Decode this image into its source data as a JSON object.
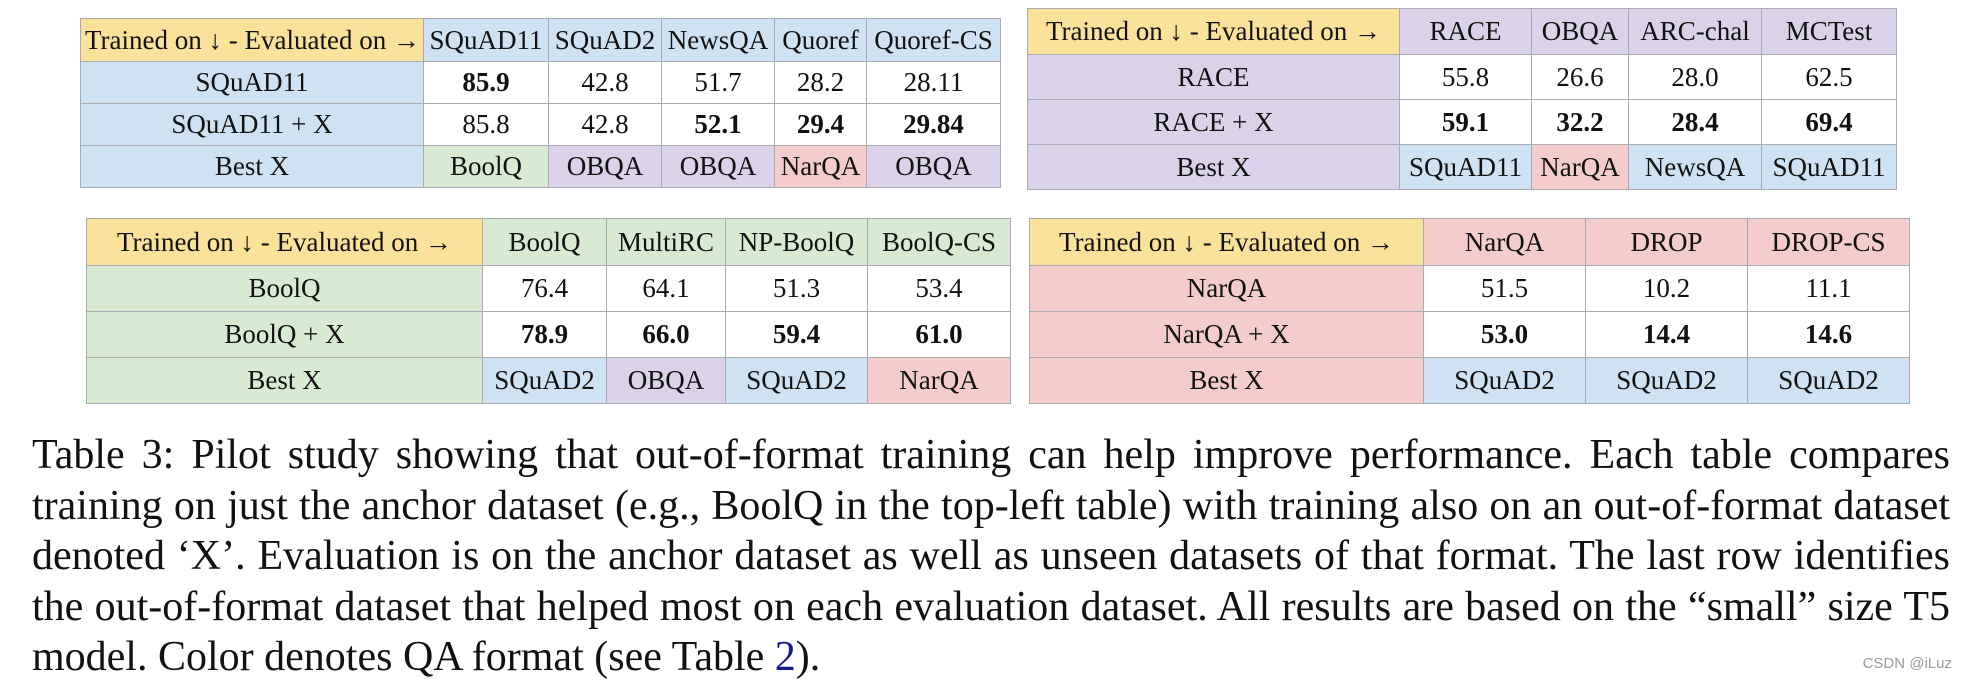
{
  "header_label": "Trained on ↓ - Evaluated on →",
  "best_x_label": "Best X",
  "tables": [
    {
      "columns": [
        "SQuAD11",
        "SQuAD2",
        "NewsQA",
        "Quoref",
        "Quoref-CS"
      ],
      "rows": [
        {
          "label": "SQuAD11",
          "values": [
            "85.9",
            "42.8",
            "51.7",
            "28.2",
            "28.11"
          ]
        },
        {
          "label": "SQuAD11 + X",
          "values": [
            "85.8",
            "42.8",
            "52.1",
            "29.4",
            "29.84"
          ]
        }
      ],
      "best_x": [
        "BoolQ",
        "OBQA",
        "OBQA",
        "NarQA",
        "OBQA"
      ]
    },
    {
      "columns": [
        "RACE",
        "OBQA",
        "ARC-chal",
        "MCTest"
      ],
      "rows": [
        {
          "label": "RACE",
          "values": [
            "55.8",
            "26.6",
            "28.0",
            "62.5"
          ]
        },
        {
          "label": "RACE + X",
          "values": [
            "59.1",
            "32.2",
            "28.4",
            "69.4"
          ]
        }
      ],
      "best_x": [
        "SQuAD11",
        "NarQA",
        "NewsQA",
        "SQuAD11"
      ]
    },
    {
      "columns": [
        "BoolQ",
        "MultiRC",
        "NP-BoolQ",
        "BoolQ-CS"
      ],
      "rows": [
        {
          "label": "BoolQ",
          "values": [
            "76.4",
            "64.1",
            "51.3",
            "53.4"
          ]
        },
        {
          "label": "BoolQ + X",
          "values": [
            "78.9",
            "66.0",
            "59.4",
            "61.0"
          ]
        }
      ],
      "best_x": [
        "SQuAD2",
        "OBQA",
        "SQuAD2",
        "NarQA"
      ]
    },
    {
      "columns": [
        "NarQA",
        "DROP",
        "DROP-CS"
      ],
      "rows": [
        {
          "label": "NarQA",
          "values": [
            "51.5",
            "10.2",
            "11.1"
          ]
        },
        {
          "label": "NarQA + X",
          "values": [
            "53.0",
            "14.4",
            "14.6"
          ]
        }
      ],
      "best_x": [
        "SQuAD2",
        "SQuAD2",
        "SQuAD2"
      ]
    }
  ],
  "format_colors": {
    "header": "#fbe29a",
    "extractive": "#cfe2f3",
    "yes_no": "#d9ead3",
    "multiple_choice": "#d9d2e9",
    "abstractive": "#f4cccc"
  },
  "caption": {
    "lines": [
      "Table 3: Pilot study showing that out-of-format training can help improve performance.  Each table compares",
      "training on just the anchor dataset (e.g., BoolQ in the top-left table) with training also on an out-of-format dataset",
      "denoted ‘X’. Evaluation is on the anchor dataset as well as unseen datasets of that format. The last row identifies",
      "the out-of-format dataset that helped most on each evaluation dataset. All results are based on the “small” size T5"
    ],
    "last_line_prefix": "model. Color denotes QA format (see Table ",
    "ref": "2",
    "last_line_suffix": ")."
  },
  "watermark": "CSDN @iLuz"
}
